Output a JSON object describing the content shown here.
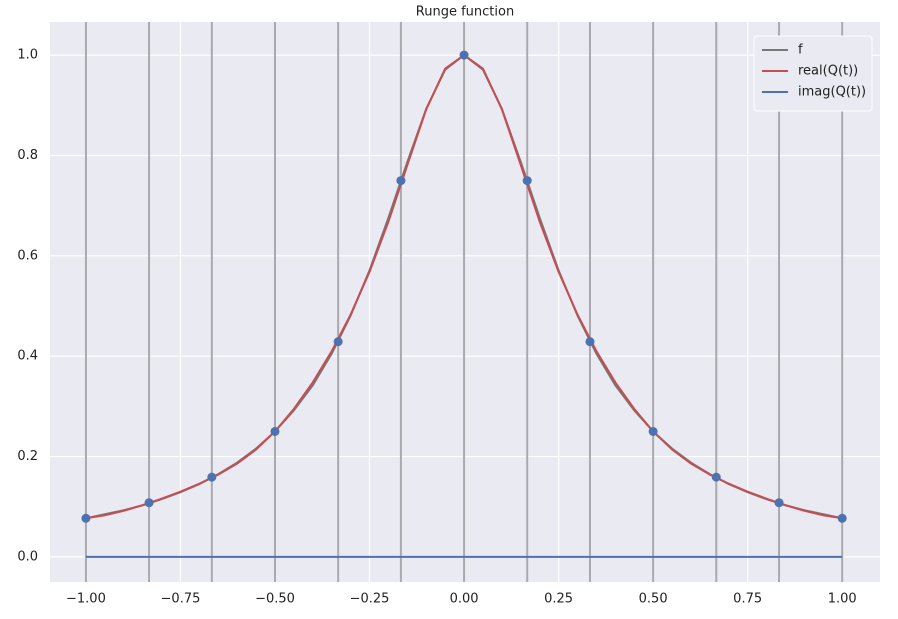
{
  "chart_data": {
    "type": "line",
    "title": "Runge function",
    "x": [
      -1,
      -0.95,
      -0.9,
      -0.85,
      -0.8,
      -0.75,
      -0.7,
      -0.65,
      -0.6,
      -0.55,
      -0.5,
      -0.45,
      -0.4,
      -0.35,
      -0.3,
      -0.25,
      -0.2,
      -0.15,
      -0.1,
      -0.05,
      0,
      0.05,
      0.1,
      0.15,
      0.2,
      0.25,
      0.3,
      0.35,
      0.4,
      0.45,
      0.5,
      0.55,
      0.6,
      0.65,
      0.7,
      0.75,
      0.8,
      0.85,
      0.9,
      0.95,
      1
    ],
    "series": [
      {
        "name": "f",
        "color": "#777777",
        "values": [
          0.077,
          0.085,
          0.093,
          0.103,
          0.115,
          0.129,
          0.145,
          0.165,
          0.188,
          0.216,
          0.25,
          0.292,
          0.342,
          0.405,
          0.481,
          0.571,
          0.676,
          0.787,
          0.893,
          0.971,
          1,
          0.971,
          0.893,
          0.787,
          0.676,
          0.571,
          0.481,
          0.405,
          0.342,
          0.292,
          0.25,
          0.216,
          0.188,
          0.165,
          0.145,
          0.129,
          0.115,
          0.103,
          0.093,
          0.085,
          0.077
        ]
      },
      {
        "name": "real(Q(t))",
        "color": "#c44e52",
        "values": [
          0.077,
          0.083,
          0.092,
          0.103,
          0.116,
          0.13,
          0.146,
          0.164,
          0.186,
          0.214,
          0.25,
          0.295,
          0.348,
          0.41,
          0.483,
          0.568,
          0.668,
          0.781,
          0.892,
          0.973,
          1,
          0.973,
          0.892,
          0.781,
          0.668,
          0.568,
          0.483,
          0.41,
          0.348,
          0.295,
          0.25,
          0.214,
          0.186,
          0.164,
          0.146,
          0.13,
          0.116,
          0.103,
          0.092,
          0.083,
          0.077
        ]
      },
      {
        "name": "imag(Q(t))",
        "color": "#4c72b0",
        "values": [
          0,
          0,
          0,
          0,
          0,
          0,
          0,
          0,
          0,
          0,
          0,
          0,
          0,
          0,
          0,
          0,
          0,
          0,
          0,
          0,
          0,
          0,
          0,
          0,
          0,
          0,
          0,
          0,
          0,
          0,
          0,
          0,
          0,
          0,
          0,
          0,
          0,
          0,
          0,
          0,
          0
        ]
      }
    ],
    "nodes": {
      "color": "#4c72b0",
      "line_color": "#a9a9ae",
      "x": [
        -1,
        -0.833,
        -0.667,
        -0.5,
        -0.333,
        -0.167,
        0,
        0.167,
        0.333,
        0.5,
        0.667,
        0.833,
        1
      ],
      "values": [
        0.077,
        0.108,
        0.159,
        0.25,
        0.429,
        0.75,
        1,
        0.75,
        0.429,
        0.25,
        0.159,
        0.108,
        0.077
      ]
    },
    "xlim": [
      -1.095,
      1.1
    ],
    "ylim": [
      -0.05,
      1.066
    ],
    "xticks": [
      {
        "value": -1,
        "label": "−1.00"
      },
      {
        "value": -0.75,
        "label": "−0.75"
      },
      {
        "value": -0.5,
        "label": "−0.50"
      },
      {
        "value": -0.25,
        "label": "−0.25"
      },
      {
        "value": 0,
        "label": "0.00"
      },
      {
        "value": 0.25,
        "label": "0.25"
      },
      {
        "value": 0.5,
        "label": "0.50"
      },
      {
        "value": 0.75,
        "label": "0.75"
      },
      {
        "value": 1,
        "label": "1.00"
      }
    ],
    "yticks": [
      {
        "value": 0,
        "label": "0.0"
      },
      {
        "value": 0.2,
        "label": "0.2"
      },
      {
        "value": 0.4,
        "label": "0.4"
      },
      {
        "value": 0.6,
        "label": "0.6"
      },
      {
        "value": 0.8,
        "label": "0.8"
      },
      {
        "value": 1,
        "label": "1.0"
      }
    ],
    "grid": true,
    "legend": "upper right"
  }
}
